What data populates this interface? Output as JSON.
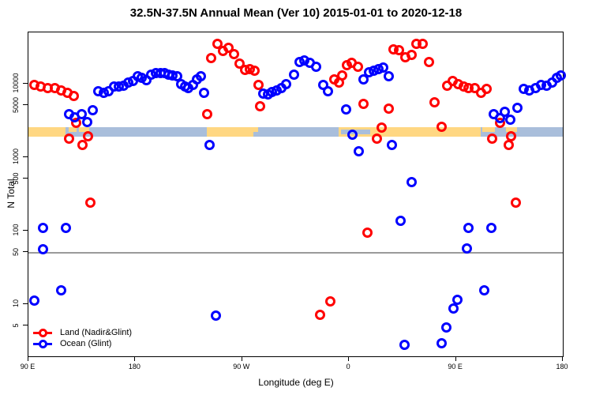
{
  "title": "32.5N-37.5N Annual Mean (Ver 10)   2015-01-01 to 2020-12-18",
  "chart_data": {
    "type": "scatter",
    "xlabel": "Longitude (deg E)",
    "ylabel": "N Total",
    "x_axis": {
      "range": [
        90,
        540
      ],
      "ticks": [
        90,
        180,
        270,
        360,
        450,
        540
      ],
      "labels": [
        "90 E",
        "180",
        "90 W",
        "0",
        "90 E",
        "180"
      ]
    },
    "y_axis": {
      "scale": "log",
      "range": [
        2,
        50000
      ],
      "ticks": [
        5,
        10,
        50,
        100,
        500,
        1000,
        5000,
        10000
      ],
      "labels": [
        "5",
        "10",
        "50",
        "100",
        "500",
        "1000",
        "5000",
        "10000"
      ]
    },
    "reference_line": {
      "value": 50,
      "color": "#9a9a9a"
    },
    "map_band": {
      "value_top": 2570,
      "value_bottom": 1900,
      "land_color": "#FFD782",
      "ocean_color": "#A9BEDB",
      "segments": [
        {
          "from": 90,
          "to": 121.3,
          "type": "land"
        },
        {
          "from": 121.3,
          "to": 240.3,
          "type": "ocean"
        },
        {
          "from": 240.3,
          "to": 279.5,
          "type": "land"
        },
        {
          "from": 279.5,
          "to": 351.3,
          "type": "ocean"
        },
        {
          "from": 351.3,
          "to": 380.6,
          "type": "med"
        },
        {
          "from": 380.6,
          "to": 471,
          "type": "land"
        },
        {
          "from": 471,
          "to": 540,
          "type": "ocean"
        }
      ],
      "land_patches_top_half": [
        {
          "from": 123.9,
          "to": 130.6
        },
        {
          "from": 132.6,
          "to": 141.2
        },
        {
          "from": 279.5,
          "to": 283.5
        },
        {
          "from": 472.3,
          "to": 483.0
        },
        {
          "from": 492.3,
          "to": 501.6
        }
      ],
      "med_ocean_stripe": {
        "from": 353,
        "to": 378
      }
    },
    "series": [
      {
        "name": "Land (Nadir&Glint)",
        "color": "#FF0000",
        "points": [
          [
            94.7,
            9750
          ],
          [
            100.6,
            9280
          ],
          [
            106,
            8620
          ],
          [
            112,
            8620
          ],
          [
            117.3,
            8200
          ],
          [
            122.6,
            7440
          ],
          [
            127.9,
            6730
          ],
          [
            129.9,
            2970
          ],
          [
            123.9,
            1770
          ],
          [
            135.2,
            1450
          ],
          [
            139.9,
            1950
          ],
          [
            142.5,
            239
          ],
          [
            240.3,
            3900
          ],
          [
            243.6,
            22100
          ],
          [
            248.9,
            35300
          ],
          [
            253.6,
            27600
          ],
          [
            258.2,
            31200
          ],
          [
            262.9,
            25000
          ],
          [
            267.5,
            19000
          ],
          [
            272.2,
            15600
          ],
          [
            276.2,
            16000
          ],
          [
            280.2,
            14900
          ],
          [
            283.5,
            9750
          ],
          [
            284.8,
            4880
          ],
          [
            335.4,
            7.1
          ],
          [
            344,
            10.9
          ],
          [
            347.3,
            11600
          ],
          [
            351.3,
            10500
          ],
          [
            354,
            13100
          ],
          [
            358,
            18100
          ],
          [
            362,
            19500
          ],
          [
            367.3,
            17200
          ],
          [
            372,
            5260
          ],
          [
            375.3,
            94
          ],
          [
            383.3,
            1770
          ],
          [
            387.3,
            2500
          ],
          [
            393.3,
            4530
          ],
          [
            397.2,
            29000
          ],
          [
            401.9,
            28300
          ],
          [
            407.2,
            22700
          ],
          [
            412.5,
            24400
          ],
          [
            416.5,
            34500
          ],
          [
            421.8,
            34500
          ],
          [
            427.2,
            20000
          ],
          [
            431.8,
            5520
          ],
          [
            437.8,
            2620
          ],
          [
            442.4,
            9500
          ],
          [
            447.1,
            10800
          ],
          [
            451.8,
            10000
          ],
          [
            456.4,
            9280
          ],
          [
            460.4,
            8830
          ],
          [
            465.7,
            8620
          ],
          [
            471,
            7440
          ],
          [
            475.7,
            8410
          ],
          [
            480.3,
            1770
          ],
          [
            487,
            2900
          ],
          [
            494.3,
            1450
          ],
          [
            496.3,
            1950
          ],
          [
            500.3,
            239
          ]
        ]
      },
      {
        "name": "Ocean (Glint)",
        "color": "#0000FF",
        "points": [
          [
            94.7,
            11.1
          ],
          [
            102,
            55.9
          ],
          [
            102.6,
            110
          ],
          [
            117.3,
            15.3
          ],
          [
            121.9,
            110
          ],
          [
            123.9,
            3900
          ],
          [
            129.2,
            3530
          ],
          [
            134.6,
            3900
          ],
          [
            139.2,
            3040
          ],
          [
            143.9,
            4310
          ],
          [
            148.5,
            8000
          ],
          [
            153.2,
            7440
          ],
          [
            157.2,
            8000
          ],
          [
            161.8,
            9280
          ],
          [
            165.8,
            9280
          ],
          [
            169.8,
            9500
          ],
          [
            173.8,
            10300
          ],
          [
            177.8,
            11000
          ],
          [
            181.8,
            12500
          ],
          [
            185.1,
            11900
          ],
          [
            189.1,
            11300
          ],
          [
            193.1,
            13400
          ],
          [
            197.1,
            13800
          ],
          [
            201.1,
            13800
          ],
          [
            204.4,
            14100
          ],
          [
            207.7,
            13400
          ],
          [
            211.1,
            13100
          ],
          [
            215.1,
            12500
          ],
          [
            218.4,
            10000
          ],
          [
            221.7,
            9280
          ],
          [
            224.4,
            8620
          ],
          [
            228.4,
            9750
          ],
          [
            231.7,
            11600
          ],
          [
            235,
            12500
          ],
          [
            237.7,
            7440
          ],
          [
            242.3,
            1450
          ],
          [
            247.6,
            6.9
          ],
          [
            287.5,
            7260
          ],
          [
            291.5,
            7080
          ],
          [
            294.8,
            7620
          ],
          [
            298.8,
            8200
          ],
          [
            302.8,
            8830
          ],
          [
            306.8,
            10000
          ],
          [
            313.4,
            13400
          ],
          [
            318.1,
            20000
          ],
          [
            322.1,
            21000
          ],
          [
            326.7,
            19500
          ],
          [
            332,
            17200
          ],
          [
            338,
            9750
          ],
          [
            342,
            7810
          ],
          [
            357.3,
            4420
          ],
          [
            362.7,
            2050
          ],
          [
            368,
            1190
          ],
          [
            372,
            11600
          ],
          [
            376.6,
            14200
          ],
          [
            380.6,
            15200
          ],
          [
            384.6,
            16000
          ],
          [
            388.6,
            16800
          ],
          [
            393.3,
            12500
          ],
          [
            395.9,
            1450
          ],
          [
            403.2,
            135
          ],
          [
            406.5,
            2.8
          ],
          [
            412.5,
            455
          ],
          [
            437.8,
            2.95
          ],
          [
            441.8,
            4.85
          ],
          [
            447.8,
            8.7
          ],
          [
            451.1,
            11.4
          ],
          [
            459,
            56.6
          ],
          [
            460.4,
            110
          ],
          [
            473.7,
            15.3
          ],
          [
            479.7,
            110
          ],
          [
            481.7,
            3810
          ],
          [
            487,
            3440
          ],
          [
            491,
            4110
          ],
          [
            495.6,
            3210
          ],
          [
            501.6,
            4650
          ],
          [
            506.9,
            8410
          ],
          [
            511.6,
            8200
          ],
          [
            516.9,
            8620
          ],
          [
            521.6,
            9750
          ],
          [
            526.2,
            9500
          ],
          [
            530.9,
            10300
          ],
          [
            534.9,
            11900
          ],
          [
            538.2,
            13100
          ]
        ]
      }
    ]
  },
  "legend": {
    "items": [
      {
        "label": "Land (Nadir&Glint)",
        "color": "#FF0000"
      },
      {
        "label": "Ocean (Glint)",
        "color": "#0000FF"
      }
    ]
  }
}
